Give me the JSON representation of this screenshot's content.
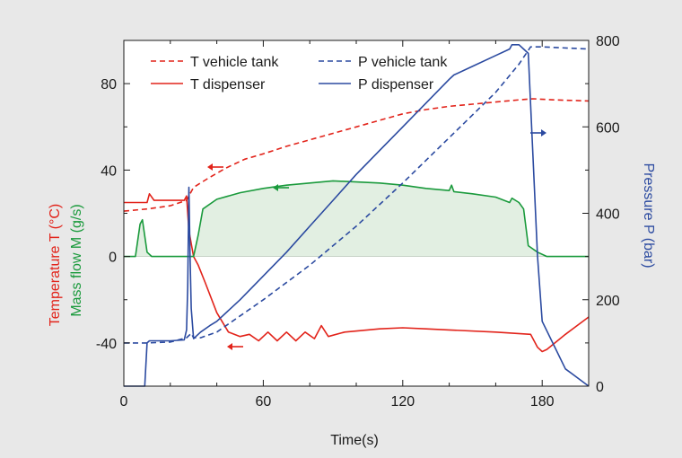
{
  "chart_data": {
    "type": "line",
    "xlabel": "Time(s)",
    "xlim": [
      0,
      200
    ],
    "xticks": [
      0,
      60,
      120,
      180
    ],
    "left_axis": {
      "ylim": [
        -60,
        100
      ],
      "ticks": [
        -40,
        0,
        40,
        80
      ],
      "labels": [
        {
          "text": "Temperature T  (°C)",
          "color": "#e2231a"
        },
        {
          "text": "Mass flow M  (g/s)",
          "color": "#1a9a3c"
        }
      ]
    },
    "right_axis": {
      "ylim": [
        0,
        800
      ],
      "ticks": [
        0,
        200,
        400,
        600,
        800
      ],
      "label": {
        "text": "Pressure P  (bar)",
        "color": "#2b4aa0"
      }
    },
    "legend_position": "top",
    "colors": {
      "red": "#e2231a",
      "green": "#1a9a3c",
      "blue": "#2b4aa0",
      "fill": "#e2efe2"
    },
    "series": [
      {
        "name": "T vehicle tank",
        "axis": "left",
        "color": "#e2231a",
        "dash": true,
        "x": [
          0,
          10,
          20,
          27,
          30,
          36,
          44,
          52,
          60,
          70,
          80,
          90,
          100,
          110,
          120,
          130,
          140,
          150,
          160,
          170,
          176,
          185,
          200
        ],
        "y": [
          21,
          22,
          23.5,
          26,
          32,
          36,
          41,
          45,
          47.5,
          51,
          54,
          57,
          60,
          63,
          66,
          68,
          69.5,
          70.5,
          71.5,
          72.5,
          73,
          72.5,
          72
        ]
      },
      {
        "name": "T dispenser",
        "axis": "left",
        "color": "#e2231a",
        "dash": false,
        "x": [
          0,
          10,
          11,
          13,
          20,
          26,
          27,
          28,
          30,
          32,
          35,
          40,
          45,
          50,
          54,
          58,
          62,
          66,
          70,
          74,
          78,
          82,
          85,
          88,
          95,
          110,
          120,
          130,
          140,
          160,
          175,
          178,
          180,
          182,
          190,
          200
        ],
        "y": [
          25,
          25,
          29,
          26,
          26,
          26,
          28,
          12,
          0,
          -4,
          -12,
          -26,
          -35,
          -37,
          -36,
          -39,
          -35,
          -39,
          -35,
          -39,
          -35,
          -38,
          -32,
          -37,
          -35,
          -33.5,
          -33,
          -33.5,
          -34,
          -35,
          -36,
          -42,
          -44,
          -43,
          -36,
          -28
        ]
      },
      {
        "name": "Mass flow",
        "axis": "left",
        "color": "#1a9a3c",
        "dash": false,
        "fill": true,
        "x": [
          0,
          5,
          7,
          8,
          10,
          12,
          30,
          32,
          34,
          40,
          50,
          60,
          70,
          80,
          90,
          100,
          110,
          120,
          130,
          140,
          141,
          142,
          150,
          160,
          166,
          167,
          170,
          172,
          174,
          178,
          182,
          200
        ],
        "y": [
          0,
          0,
          15,
          17,
          2,
          0,
          0,
          10,
          22,
          26.5,
          29.5,
          31.5,
          33,
          34,
          35,
          34.5,
          34,
          33,
          31.5,
          30.5,
          33,
          30,
          29,
          27.5,
          25,
          27,
          25,
          22,
          5,
          2,
          0,
          0
        ]
      },
      {
        "name": "P vehicle tank",
        "axis": "right",
        "color": "#2b4aa0",
        "dash": true,
        "x": [
          0,
          10,
          20,
          27,
          29,
          30,
          33,
          40,
          60,
          80,
          100,
          120,
          140,
          160,
          170,
          175,
          180,
          200
        ],
        "y": [
          100,
          100,
          102,
          112,
          122,
          112,
          112,
          125,
          200,
          280,
          370,
          470,
          575,
          680,
          745,
          785,
          785,
          780
        ]
      },
      {
        "name": "P dispenser",
        "axis": "right",
        "color": "#2b4aa0",
        "dash": false,
        "x": [
          0,
          9,
          10,
          11,
          20,
          26,
          27,
          27.5,
          28,
          28.5,
          29,
          30,
          31,
          33,
          37,
          40,
          50,
          60,
          70,
          80,
          90,
          100,
          110,
          120,
          130,
          140,
          141,
          142,
          150,
          160,
          166,
          167,
          170,
          172,
          174,
          178,
          180,
          190,
          200
        ],
        "y": [
          0,
          0,
          100,
          105,
          105,
          107,
          130,
          230,
          460,
          300,
          180,
          110,
          115,
          125,
          140,
          150,
          200,
          255,
          310,
          370,
          430,
          490,
          545,
          600,
          655,
          710,
          715,
          720,
          740,
          765,
          780,
          790,
          790,
          780,
          770,
          300,
          150,
          40,
          0
        ]
      }
    ],
    "legend": [
      {
        "text": "T vehicle tank",
        "color": "#e2231a",
        "dash": true
      },
      {
        "text": "P vehicle tank",
        "color": "#2b4aa0",
        "dash": true
      },
      {
        "text": "T dispenser",
        "color": "#e2231a",
        "dash": false
      },
      {
        "text": "P dispenser",
        "color": "#2b4aa0",
        "dash": false
      }
    ],
    "annotation_arrows": [
      {
        "label": "T vehicle tank",
        "direction": "left",
        "color": "#e2231a"
      },
      {
        "label": "Mass flow",
        "direction": "left",
        "color": "#1a9a3c"
      },
      {
        "label": "T dispenser",
        "direction": "left",
        "color": "#e2231a"
      },
      {
        "label": "P dispenser",
        "direction": "right",
        "color": "#2b4aa0"
      }
    ]
  }
}
